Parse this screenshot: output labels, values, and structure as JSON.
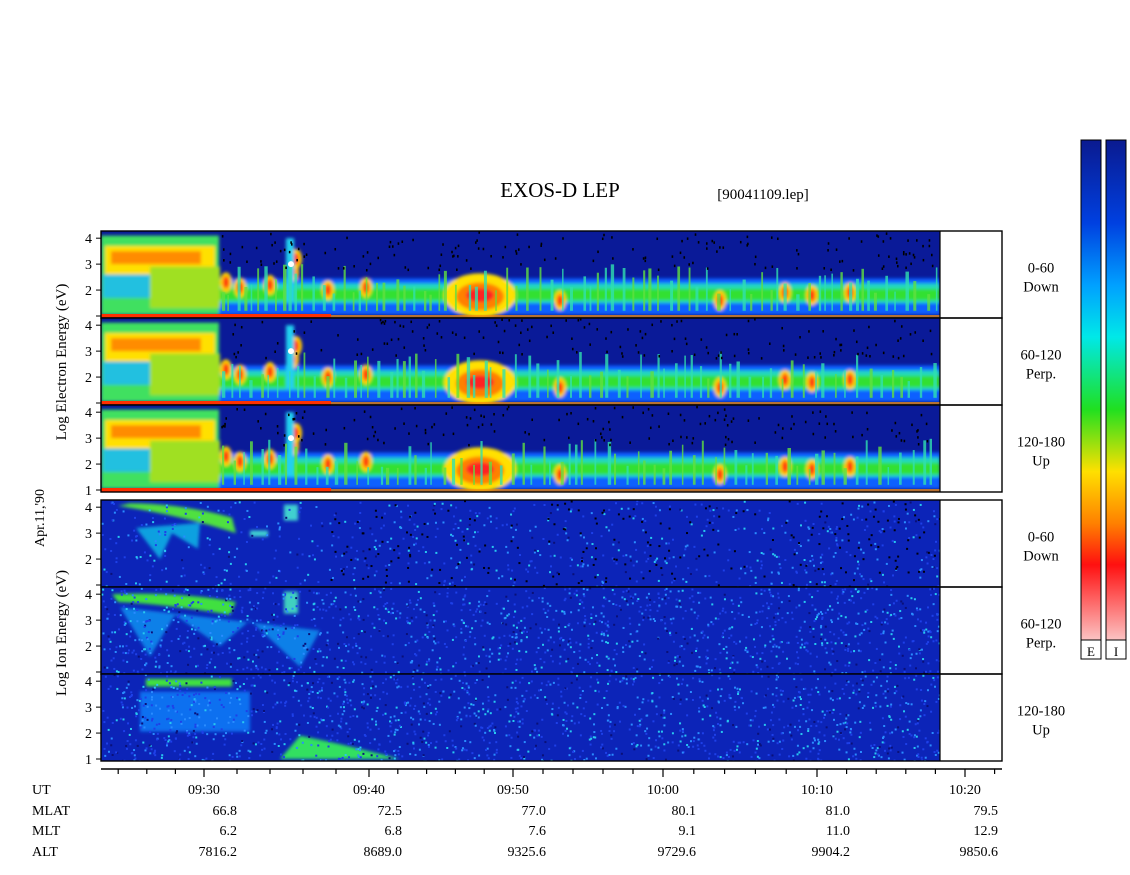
{
  "title": "EXOS-D LEP",
  "file_label": "[90041109.lep]",
  "date_label": "Apr.11,'90",
  "electron_axis": [
    "Log",
    "Electron",
    "Energy",
    "(eV)"
  ],
  "ion_axis": [
    "Log",
    "Ion",
    "Energy",
    "(eV)"
  ],
  "y_ticks": [
    "1",
    "2",
    "3",
    "4"
  ],
  "panels": [
    {
      "species": "electron",
      "pitch": "0-60",
      "dir": "Down"
    },
    {
      "species": "electron",
      "pitch": "60-120",
      "dir": "Perp."
    },
    {
      "species": "electron",
      "pitch": "120-180",
      "dir": "Up"
    },
    {
      "species": "ion",
      "pitch": "0-60",
      "dir": "Down"
    },
    {
      "species": "ion",
      "pitch": "60-120",
      "dir": "Perp."
    },
    {
      "species": "ion",
      "pitch": "120-180",
      "dir": "Up"
    }
  ],
  "colorbar_labels": [
    "E",
    "I"
  ],
  "colors": {
    "scale": [
      "#f8e8e8",
      "#ff2020",
      "#ff8000",
      "#ffe000",
      "#20e020",
      "#00e0e0",
      "#0060ff",
      "#0a1a90"
    ]
  },
  "orbit": {
    "row_labels": [
      "UT",
      "MLAT",
      "MLT",
      "ALT"
    ],
    "columns": [
      {
        "UT": "09:30",
        "MLAT": "66.8",
        "MLT": "6.2",
        "ALT": "7816.2"
      },
      {
        "UT": "09:40",
        "MLAT": "72.5",
        "MLT": "6.8",
        "ALT": "8689.0"
      },
      {
        "UT": "09:50",
        "MLAT": "77.0",
        "MLT": "7.6",
        "ALT": "9325.6"
      },
      {
        "UT": "10:00",
        "MLAT": "80.1",
        "MLT": "9.1",
        "ALT": "9729.6"
      },
      {
        "UT": "10:10",
        "MLAT": "81.0",
        "MLT": "11.0",
        "ALT": "9904.2"
      },
      {
        "UT": "10:20",
        "MLAT": "79.5",
        "MLT": "12.9",
        "ALT": "9850.6"
      }
    ]
  },
  "chart_data": {
    "type": "heatmap",
    "title": "EXOS-D LEP",
    "subtitle": "[90041109.lep]",
    "x_axis": {
      "quantity": "UT",
      "ticks": [
        "09:30",
        "09:40",
        "09:50",
        "10:00",
        "10:10",
        "10:20"
      ],
      "range": [
        "09:21",
        "10:22"
      ],
      "data_end": "10:18"
    },
    "y_axis": {
      "range": [
        1,
        4.2
      ],
      "ticks": [
        1,
        2,
        3,
        4
      ]
    },
    "series": [
      {
        "name": "0-60 Down",
        "species": "Electron"
      },
      {
        "name": "60-120 Perp.",
        "species": "Electron"
      },
      {
        "name": "120-180 Up",
        "species": "Electron"
      },
      {
        "name": "0-60 Down",
        "species": "Ion"
      },
      {
        "name": "60-120 Perp.",
        "species": "Ion"
      },
      {
        "name": "120-180 Up",
        "species": "Ion"
      }
    ],
    "colorbars": [
      "E",
      "I"
    ]
  }
}
